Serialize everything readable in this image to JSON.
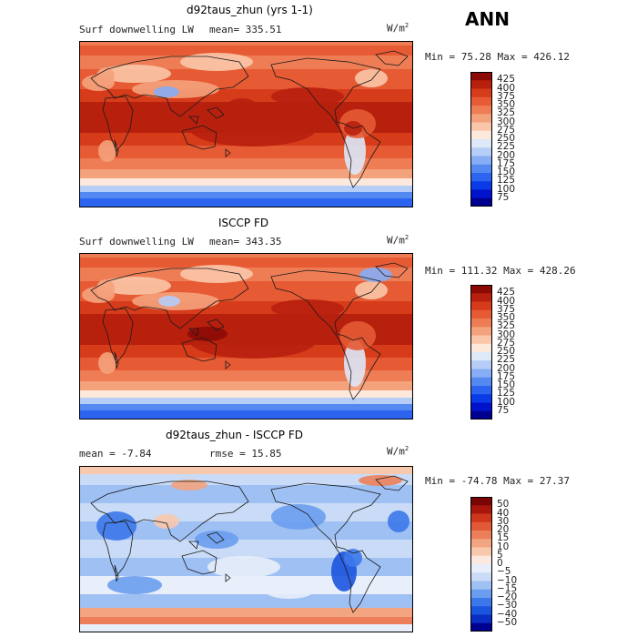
{
  "header": {
    "season": "ANN"
  },
  "colors": {
    "abs_palette": [
      "#000090",
      "#0012cc",
      "#0a3be6",
      "#2c64ef",
      "#5589f2",
      "#86adf5",
      "#b5cdf7",
      "#dde8f8",
      "#fde9dc",
      "#f9c7a8",
      "#f4a27c",
      "#ee7d55",
      "#e65a34",
      "#d63b1a",
      "#b8200e",
      "#8c0a06"
    ],
    "diff_palette": [
      "#000090",
      "#0a2ec4",
      "#1b54df",
      "#3c78ea",
      "#6a9def",
      "#9ec0f3",
      "#c9dbf6",
      "#e8eefa",
      "#fbe9e0",
      "#f8c8ad",
      "#f3a481",
      "#ec7f5a",
      "#e25937",
      "#cd361c",
      "#a8160c",
      "#7a0505"
    ]
  },
  "panels": [
    {
      "title": "d92taus_zhun (yrs 1-1)",
      "variable": "Surf downwelling LW",
      "mean_text": "mean= 335.51",
      "units": "W/m",
      "units_exp": "2",
      "minmax_text": "Min =  75.28 Max = 426.12",
      "chart_data": {
        "type": "heatmap",
        "field": "Surf downwelling LW",
        "units": "W/m2",
        "mean": 335.51,
        "min": 75.28,
        "max": 426.12,
        "levels": [
          75,
          100,
          125,
          150,
          175,
          200,
          225,
          250,
          275,
          300,
          325,
          350,
          375,
          400,
          425
        ],
        "colorbar_labels": [
          "425",
          "400",
          "375",
          "350",
          "325",
          "300",
          "275",
          "250",
          "225",
          "200",
          "175",
          "150",
          "125",
          "100",
          "75"
        ]
      }
    },
    {
      "title": "ISCCP FD",
      "variable": "Surf downwelling LW",
      "mean_text": "mean= 343.35",
      "units": "W/m",
      "units_exp": "2",
      "minmax_text": "Min = 111.32 Max = 428.26",
      "chart_data": {
        "type": "heatmap",
        "field": "Surf downwelling LW",
        "units": "W/m2",
        "mean": 343.35,
        "min": 111.32,
        "max": 428.26,
        "levels": [
          75,
          100,
          125,
          150,
          175,
          200,
          225,
          250,
          275,
          300,
          325,
          350,
          375,
          400,
          425
        ],
        "colorbar_labels": [
          "425",
          "400",
          "375",
          "350",
          "325",
          "300",
          "275",
          "250",
          "225",
          "200",
          "175",
          "150",
          "125",
          "100",
          "75"
        ]
      }
    },
    {
      "title": "d92taus_zhun - ISCCP FD",
      "variable": "mean =  -7.84",
      "mean_text": "rmse =  15.85",
      "units": "W/m",
      "units_exp": "2",
      "minmax_text": "Min = -74.78 Max =  27.37",
      "chart_data": {
        "type": "heatmap",
        "field": "difference",
        "units": "W/m2",
        "mean": -7.84,
        "rmse": 15.85,
        "min": -74.78,
        "max": 27.37,
        "levels": [
          -50,
          -40,
          -30,
          -20,
          -15,
          -10,
          -5,
          0,
          5,
          10,
          15,
          20,
          30,
          40,
          50
        ],
        "colorbar_labels": [
          "50",
          "40",
          "30",
          "20",
          "15",
          "10",
          "5",
          "0",
          "−5",
          "−10",
          "−15",
          "−20",
          "−30",
          "−40",
          "−50"
        ]
      }
    }
  ]
}
